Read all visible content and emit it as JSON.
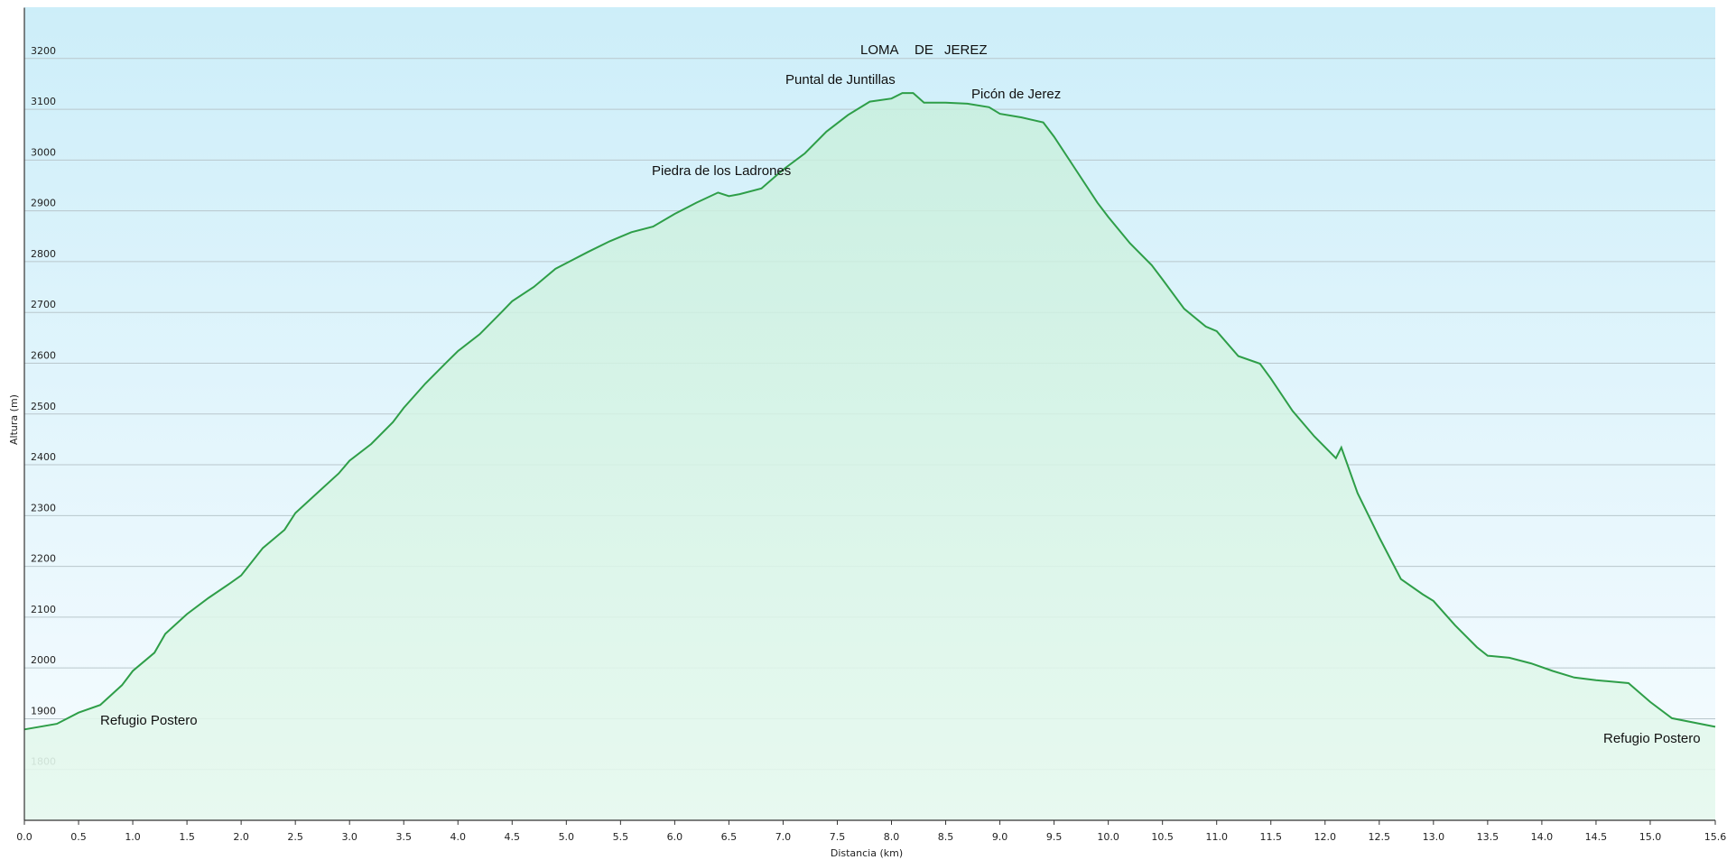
{
  "chart_data": {
    "type": "area",
    "x_label": "Distancia  (km)",
    "y_label": "Altura (m)",
    "xlim": [
      0,
      15.6
    ],
    "ylim": [
      1700,
      3300
    ],
    "xticks": [
      {
        "value": 0,
        "label": "0.0"
      },
      {
        "value": 0.5,
        "label": "0.5"
      },
      {
        "value": 1,
        "label": "1.0"
      },
      {
        "value": 1.5,
        "label": "1.5"
      },
      {
        "value": 2,
        "label": "2.0"
      },
      {
        "value": 2.5,
        "label": "2.5"
      },
      {
        "value": 3,
        "label": "3.0"
      },
      {
        "value": 3.5,
        "label": "3.5"
      },
      {
        "value": 4,
        "label": "4.0"
      },
      {
        "value": 4.5,
        "label": "4.5"
      },
      {
        "value": 5,
        "label": "5.0"
      },
      {
        "value": 5.5,
        "label": "5.5"
      },
      {
        "value": 6,
        "label": "6.0"
      },
      {
        "value": 6.5,
        "label": "6.5"
      },
      {
        "value": 7,
        "label": "7.0"
      },
      {
        "value": 7.5,
        "label": "7.5"
      },
      {
        "value": 8,
        "label": "8.0"
      },
      {
        "value": 8.5,
        "label": "8.5"
      },
      {
        "value": 9,
        "label": "9.0"
      },
      {
        "value": 9.5,
        "label": "9.5"
      },
      {
        "value": 10,
        "label": "10.0"
      },
      {
        "value": 10.5,
        "label": "10.5"
      },
      {
        "value": 11,
        "label": "11.0"
      },
      {
        "value": 11.5,
        "label": "11.5"
      },
      {
        "value": 12,
        "label": "12.0"
      },
      {
        "value": 12.5,
        "label": "12.5"
      },
      {
        "value": 13,
        "label": "13.0"
      },
      {
        "value": 13.5,
        "label": "13.5"
      },
      {
        "value": 14,
        "label": "14.0"
      },
      {
        "value": 14.5,
        "label": "14.5"
      },
      {
        "value": 15,
        "label": "15.0"
      },
      {
        "value": 15.6,
        "label": "15.6"
      }
    ],
    "yticks": [
      1800,
      1900,
      2000,
      2100,
      2200,
      2300,
      2400,
      2500,
      2600,
      2700,
      2800,
      2900,
      3000,
      3100,
      3200
    ],
    "grid": true,
    "color": "#2e9e48",
    "x": [
      0,
      0.3,
      0.5,
      0.7,
      0.9,
      1.0,
      1.2,
      1.3,
      1.5,
      1.7,
      1.9,
      2.0,
      2.2,
      2.4,
      2.5,
      2.7,
      2.9,
      3.0,
      3.2,
      3.4,
      3.5,
      3.7,
      3.9,
      4.0,
      4.2,
      4.4,
      4.5,
      4.7,
      4.9,
      5.0,
      5.2,
      5.4,
      5.6,
      5.8,
      6.0,
      6.2,
      6.4,
      6.5,
      6.6,
      6.8,
      7.0,
      7.2,
      7.4,
      7.6,
      7.8,
      8.0,
      8.1,
      8.2,
      8.3,
      8.5,
      8.7,
      8.9,
      9.0,
      9.2,
      9.4,
      9.5,
      9.7,
      9.9,
      10.0,
      10.2,
      10.4,
      10.5,
      10.7,
      10.9,
      11.0,
      11.2,
      11.4,
      11.5,
      11.7,
      11.9,
      12.1,
      12.15,
      12.3,
      12.5,
      12.7,
      12.9,
      13.0,
      13.2,
      13.4,
      13.5,
      13.7,
      13.9,
      14.1,
      14.3,
      14.5,
      14.8,
      15.0,
      15.2,
      15.6
    ],
    "values": [
      1879,
      1890,
      1912,
      1927,
      1966,
      1994,
      2030,
      2067,
      2106,
      2138,
      2167,
      2182,
      2236,
      2272,
      2305,
      2344,
      2383,
      2408,
      2441,
      2484,
      2512,
      2560,
      2603,
      2624,
      2657,
      2700,
      2722,
      2750,
      2786,
      2797,
      2819,
      2840,
      2858,
      2869,
      2894,
      2916,
      2936,
      2929,
      2933,
      2944,
      2981,
      3013,
      3056,
      3089,
      3115,
      3121,
      3132,
      3132,
      3113,
      3113,
      3111,
      3104,
      3091,
      3084,
      3074,
      3046,
      2981,
      2916,
      2888,
      2836,
      2793,
      2765,
      2707,
      2672,
      2663,
      2614,
      2599,
      2570,
      2506,
      2456,
      2413,
      2434,
      2344,
      2257,
      2175,
      2145,
      2132,
      2084,
      2041,
      2024,
      2020,
      2009,
      1994,
      1981,
      1976,
      1970,
      1933,
      1901,
      1884
    ],
    "annotations": [
      "LOMA",
      "DE",
      "JEREZ",
      "Puntal de Juntillas",
      "Picón de Jerez",
      "Piedra de los Ladrones",
      "Refugio Postero",
      "Refugio Postero"
    ]
  }
}
